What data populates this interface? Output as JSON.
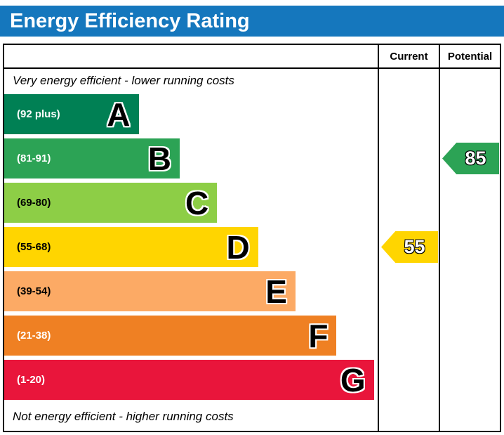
{
  "title": "Energy Efficiency Rating",
  "header": {
    "current": "Current",
    "potential": "Potential"
  },
  "notes": {
    "top": "Very energy efficient - lower running costs",
    "bottom": "Not energy efficient - higher running costs"
  },
  "colors": {
    "title_bar": "#1577bd",
    "border": "#000000"
  },
  "chart_data": {
    "type": "bar",
    "title": "Energy Efficiency Rating",
    "bands": [
      {
        "letter": "A",
        "range": "(92 plus)",
        "color": "#008054",
        "text_color": "#ffffff",
        "width_pct": 36
      },
      {
        "letter": "B",
        "range": "(81-91)",
        "color": "#2ca355",
        "text_color": "#ffffff",
        "width_pct": 47
      },
      {
        "letter": "C",
        "range": "(69-80)",
        "color": "#8dce46",
        "text_color": "#000000",
        "width_pct": 57
      },
      {
        "letter": "D",
        "range": "(55-68)",
        "color": "#ffd500",
        "text_color": "#000000",
        "width_pct": 68
      },
      {
        "letter": "E",
        "range": "(39-54)",
        "color": "#fcaa65",
        "text_color": "#000000",
        "width_pct": 78
      },
      {
        "letter": "F",
        "range": "(21-38)",
        "color": "#ef8023",
        "text_color": "#ffffff",
        "width_pct": 89
      },
      {
        "letter": "G",
        "range": "(1-20)",
        "color": "#e9153b",
        "text_color": "#ffffff",
        "width_pct": 99
      }
    ],
    "current": {
      "value": "55",
      "band": "D",
      "band_index": 3,
      "color": "#ffd500"
    },
    "potential": {
      "value": "85",
      "band": "B",
      "band_index": 1,
      "color": "#2ca355"
    }
  }
}
